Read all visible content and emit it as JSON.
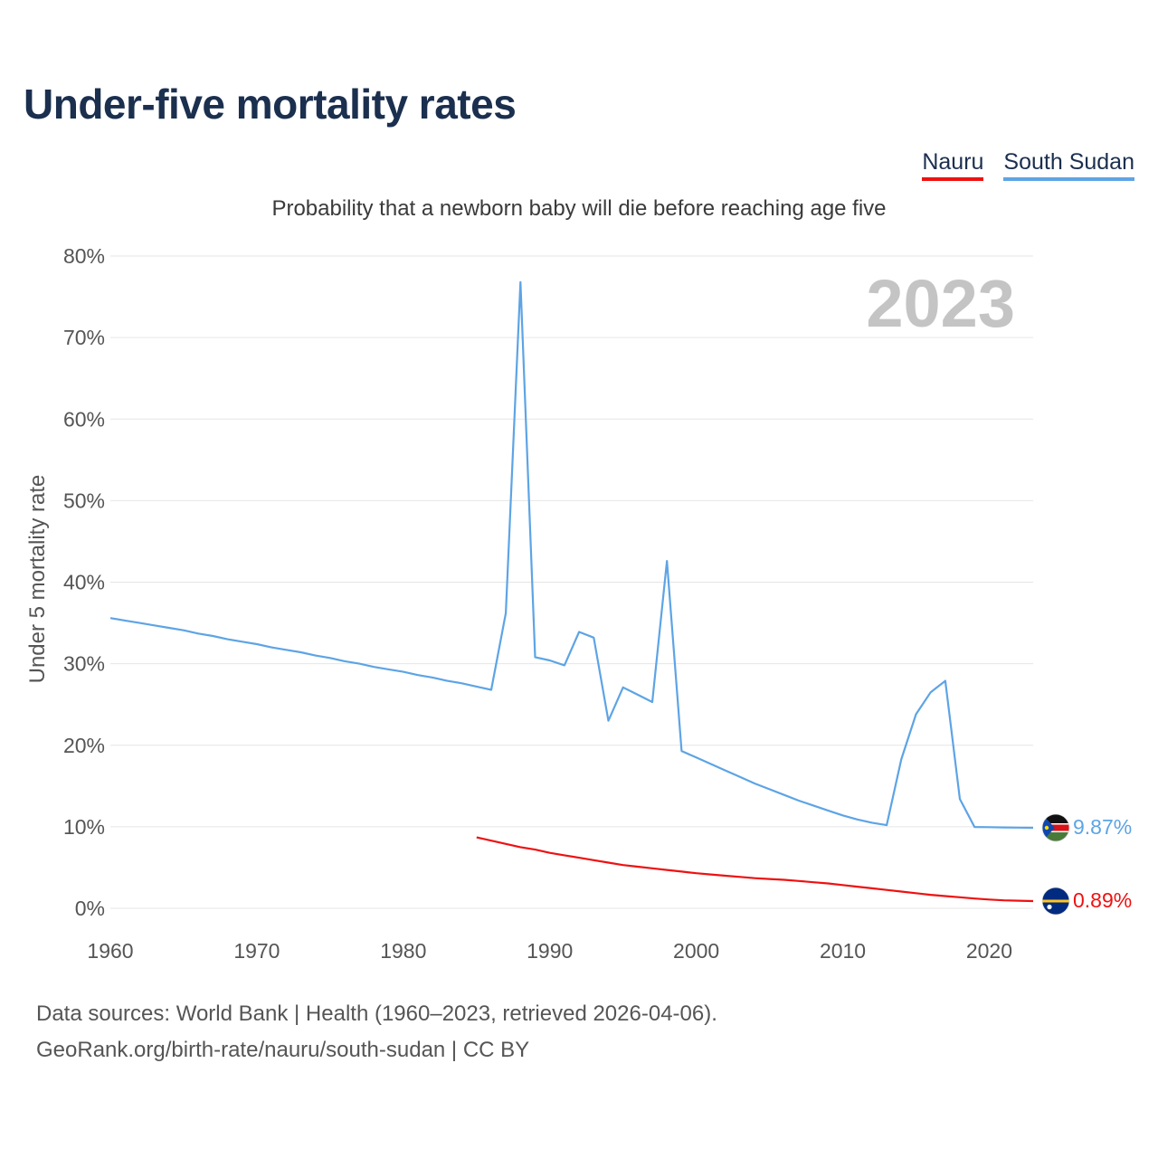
{
  "title": "Under-five mortality rates",
  "subtitle": "Probability that a newborn baby will die before reaching age five",
  "legend": [
    {
      "name": "Nauru",
      "color": "#ee1111"
    },
    {
      "name": "South Sudan",
      "color": "#5da4e5"
    }
  ],
  "year_watermark": "2023",
  "source_line1": "Data sources: World Bank | Health (1960–2023, retrieved 2026-04-06).",
  "source_line2": "GeoRank.org/birth-rate/nauru/south-sudan | CC BY",
  "chart_data": {
    "type": "line",
    "title": "Under-five mortality rates",
    "subtitle": "Probability that a newborn baby will die before reaching age five",
    "xlabel": "",
    "ylabel": "Under 5 mortality rate",
    "xlim": [
      1960,
      2023
    ],
    "ylim": [
      0,
      80
    ],
    "xticks": [
      1960,
      1970,
      1980,
      1990,
      2000,
      2010,
      2020
    ],
    "yticks": [
      0,
      10,
      20,
      30,
      40,
      50,
      60,
      70,
      80
    ],
    "ytick_labels": [
      "0%",
      "10%",
      "20%",
      "30%",
      "40%",
      "50%",
      "60%",
      "70%",
      "80%"
    ],
    "grid": true,
    "series": [
      {
        "name": "South Sudan",
        "color": "#5da4e5",
        "end_label": "9.87%",
        "x": [
          1960,
          1961,
          1962,
          1963,
          1964,
          1965,
          1966,
          1967,
          1968,
          1969,
          1970,
          1971,
          1972,
          1973,
          1974,
          1975,
          1976,
          1977,
          1978,
          1979,
          1980,
          1981,
          1982,
          1983,
          1984,
          1985,
          1986,
          1987,
          1988,
          1989,
          1990,
          1991,
          1992,
          1993,
          1994,
          1995,
          1996,
          1997,
          1998,
          1999,
          2000,
          2001,
          2002,
          2003,
          2004,
          2005,
          2006,
          2007,
          2008,
          2009,
          2010,
          2011,
          2012,
          2013,
          2014,
          2015,
          2016,
          2017,
          2018,
          2019,
          2020,
          2021,
          2022,
          2023
        ],
        "values": [
          35.6,
          35.3,
          35.0,
          34.7,
          34.4,
          34.1,
          33.7,
          33.4,
          33.0,
          32.7,
          32.4,
          32.0,
          31.7,
          31.4,
          31.0,
          30.7,
          30.3,
          30.0,
          29.6,
          29.3,
          29.0,
          28.6,
          28.3,
          27.9,
          27.6,
          27.2,
          26.8,
          36.2,
          76.8,
          30.8,
          30.4,
          29.8,
          33.9,
          33.2,
          23.0,
          27.1,
          26.2,
          25.3,
          42.6,
          19.3,
          18.5,
          17.7,
          16.9,
          16.1,
          15.3,
          14.6,
          13.9,
          13.2,
          12.6,
          12.0,
          11.4,
          10.9,
          10.5,
          10.2,
          18.3,
          23.8,
          26.5,
          27.9,
          13.4,
          9.98,
          9.95,
          9.92,
          9.9,
          9.87
        ]
      },
      {
        "name": "Nauru",
        "color": "#ee1111",
        "end_label": "0.89%",
        "x": [
          1985,
          1986,
          1987,
          1988,
          1989,
          1990,
          1991,
          1992,
          1993,
          1994,
          1995,
          1996,
          1997,
          1998,
          1999,
          2000,
          2001,
          2002,
          2003,
          2004,
          2005,
          2006,
          2007,
          2008,
          2009,
          2010,
          2011,
          2012,
          2013,
          2014,
          2015,
          2016,
          2017,
          2018,
          2019,
          2020,
          2021,
          2022,
          2023
        ],
        "values": [
          8.7,
          8.3,
          7.9,
          7.5,
          7.2,
          6.8,
          6.5,
          6.2,
          5.9,
          5.6,
          5.3,
          5.1,
          4.9,
          4.7,
          4.5,
          4.3,
          4.15,
          4.0,
          3.85,
          3.7,
          3.6,
          3.5,
          3.35,
          3.2,
          3.05,
          2.85,
          2.65,
          2.45,
          2.25,
          2.05,
          1.85,
          1.65,
          1.5,
          1.35,
          1.2,
          1.08,
          0.98,
          0.93,
          0.89
        ]
      }
    ]
  }
}
